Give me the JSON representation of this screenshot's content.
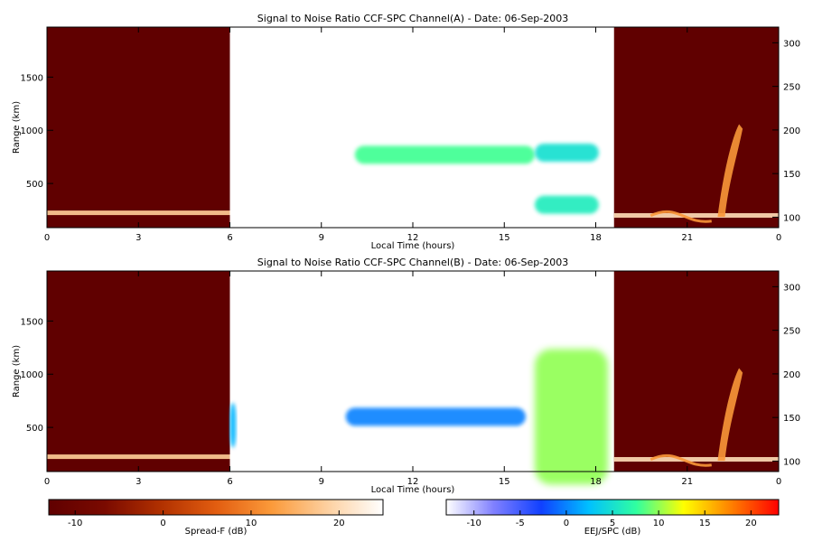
{
  "chart_data": [
    {
      "type": "heatmap",
      "title": "Signal to Noise Ratio CCF-SPC Channel(A) - Date: 06-Sep-2003",
      "xlabel": "Local Time (hours)",
      "ylabel": "Range (km)",
      "x_ticks": [
        "0",
        "3",
        "6",
        "9",
        "12",
        "15",
        "18",
        "21",
        "0"
      ],
      "y_ticks": [
        "500",
        "1000",
        "1500"
      ],
      "y2_ticks": [
        "100",
        "150",
        "200",
        "250",
        "300"
      ],
      "xlim": [
        0,
        24
      ],
      "ylim": [
        85,
        1970
      ],
      "y2lim": [
        88,
        318
      ],
      "regions": [
        {
          "kind": "spread_f",
          "x_from": 0,
          "x_to": 6
        },
        {
          "kind": "eej_spc",
          "x_from": 6,
          "x_to": 18.6
        },
        {
          "kind": "spread_f",
          "x_from": 18.6,
          "x_to": 24
        }
      ],
      "echoes": [
        {
          "kind": "eej_spc",
          "x_from": 10.1,
          "x_to": 16.0,
          "range": 770,
          "intensity_db": 8
        },
        {
          "kind": "eej_spc",
          "x_from": 16.0,
          "x_to": 18.1,
          "range": 790,
          "intensity_db": 5
        },
        {
          "kind": "eej_spc",
          "x_from": 16.0,
          "x_to": 18.1,
          "range": 300,
          "intensity_db": 6
        },
        {
          "kind": "spread_f",
          "x_from": 0,
          "x_to": 6,
          "alt": 105,
          "intensity_db": 18
        },
        {
          "kind": "spread_f",
          "x_from": 18.6,
          "x_to": 24,
          "alt": 102,
          "intensity_db": 20
        },
        {
          "kind": "spread_f",
          "x_from": 19.8,
          "x_to": 21.8,
          "alt": 110,
          "intensity_db": 12
        },
        {
          "kind": "spread_f",
          "x_from": 22.0,
          "x_to": 22.7,
          "alt": 160,
          "intensity_db": 12
        }
      ]
    },
    {
      "type": "heatmap",
      "title": "Signal to Noise Ratio CCF-SPC Channel(B) - Date: 06-Sep-2003",
      "xlabel": "Local Time (hours)",
      "ylabel": "Range (km)",
      "x_ticks": [
        "0",
        "3",
        "6",
        "9",
        "12",
        "15",
        "18",
        "21",
        "0"
      ],
      "y_ticks": [
        "500",
        "1000",
        "1500"
      ],
      "y2_ticks": [
        "100",
        "150",
        "200",
        "250",
        "300"
      ],
      "xlim": [
        0,
        24
      ],
      "ylim": [
        85,
        1970
      ],
      "y2lim": [
        88,
        318
      ],
      "regions": [
        {
          "kind": "spread_f",
          "x_from": 0,
          "x_to": 6
        },
        {
          "kind": "eej_spc",
          "x_from": 6,
          "x_to": 18.6
        },
        {
          "kind": "spread_f",
          "x_from": 18.6,
          "x_to": 24
        }
      ],
      "echoes": [
        {
          "kind": "eej_spc",
          "x_from": 9.8,
          "x_to": 15.7,
          "range": 600,
          "intensity_db": 0
        },
        {
          "kind": "eej_spc",
          "x_from": 6.0,
          "x_to": 6.2,
          "range": 520,
          "intensity_db": 2
        },
        {
          "kind": "eej_spc",
          "x_from": 16.0,
          "x_to": 18.4,
          "range": 600,
          "intensity_db": 10
        },
        {
          "kind": "spread_f",
          "x_from": 0,
          "x_to": 6,
          "alt": 105,
          "intensity_db": 18
        },
        {
          "kind": "spread_f",
          "x_from": 18.6,
          "x_to": 24,
          "alt": 102,
          "intensity_db": 20
        },
        {
          "kind": "spread_f",
          "x_from": 19.8,
          "x_to": 21.8,
          "alt": 110,
          "intensity_db": 12
        },
        {
          "kind": "spread_f",
          "x_from": 22.0,
          "x_to": 22.7,
          "alt": 160,
          "intensity_db": 12
        }
      ]
    }
  ],
  "colorbars": [
    {
      "label": "Spread-F (dB)",
      "range": [
        -13,
        25
      ],
      "ticks": [
        "-10",
        "0",
        "10",
        "20"
      ],
      "tick_values": [
        -10,
        0,
        10,
        20
      ],
      "colormap": [
        "#600000",
        "#7a0a00",
        "#b03000",
        "#e25d10",
        "#fb9a3a",
        "#fdd0a0",
        "#ffffff"
      ]
    },
    {
      "label": "EEJ/SPC (dB)",
      "range": [
        -13,
        23
      ],
      "ticks": [
        "-10",
        "-5",
        "0",
        "5",
        "10",
        "15",
        "20"
      ],
      "tick_values": [
        -10,
        -5,
        0,
        5,
        10,
        15,
        20
      ],
      "colormap": [
        "#ffffff",
        "#8080ff",
        "#1040ff",
        "#00c0ff",
        "#30ffa0",
        "#ffff00",
        "#ff8000",
        "#ff0000"
      ]
    }
  ]
}
